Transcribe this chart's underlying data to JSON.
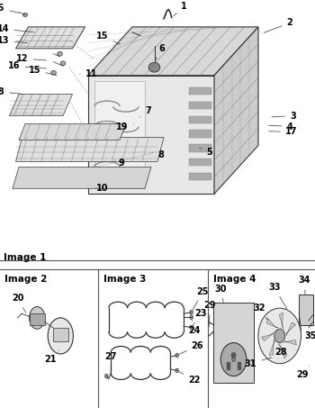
{
  "title": "",
  "bg_color": "#ffffff",
  "border_color": "#888888",
  "image1_label": "Image 1",
  "image2_label": "Image 2",
  "image3_label": "Image 3",
  "image4_label": "Image 4",
  "line_color": "#333333",
  "label_fontsize": 7,
  "section_label_fontsize": 7.5
}
